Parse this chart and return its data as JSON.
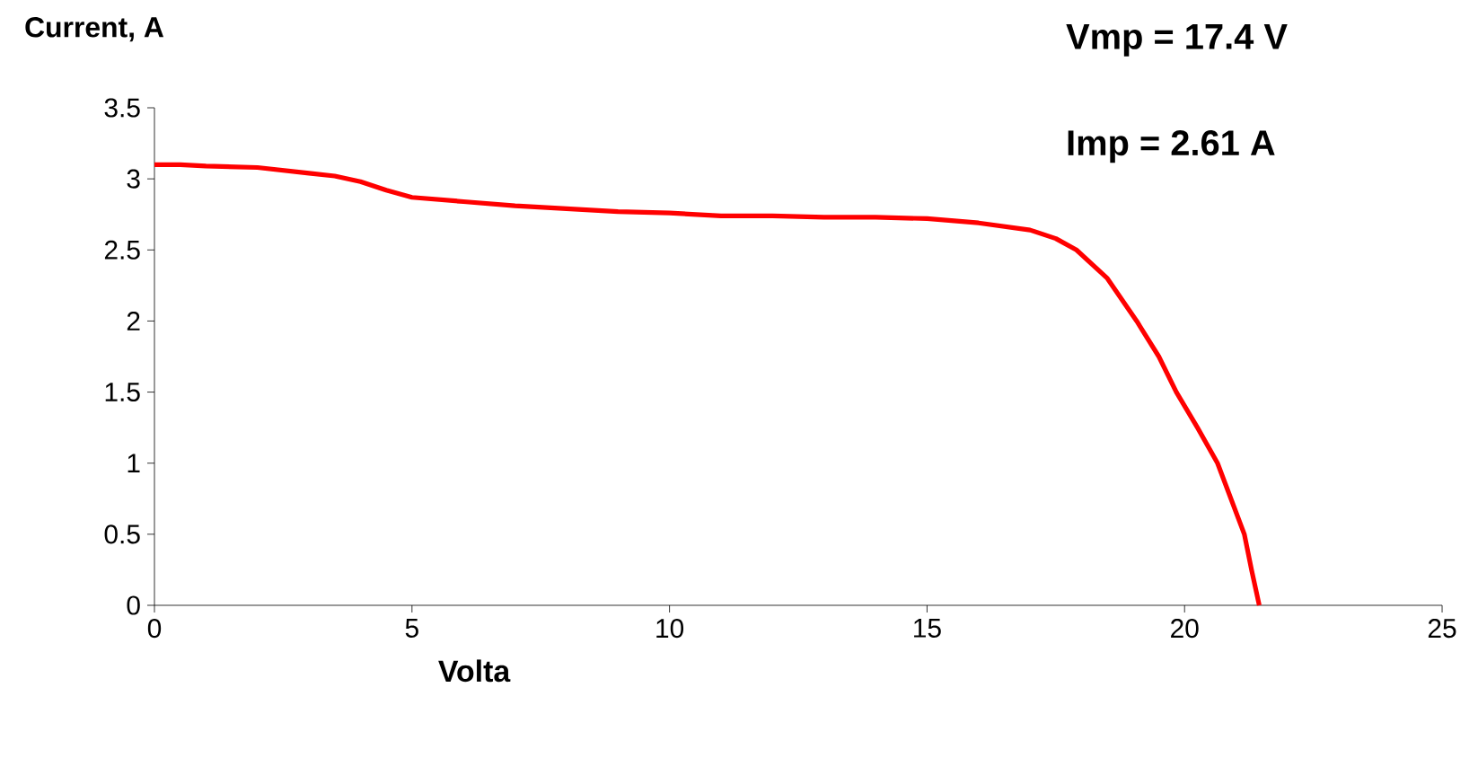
{
  "chart_data": {
    "type": "line",
    "xlabel": "Volta",
    "ylabel": "Current, A",
    "annotations": [
      "Vmp = 17.4 V",
      "Imp  = 2.61 A"
    ],
    "x": [
      0,
      0.5,
      1,
      2,
      3,
      3.5,
      4,
      4.5,
      5,
      6,
      7,
      8,
      9,
      10,
      11,
      12,
      13,
      14,
      15,
      16,
      17,
      17.5,
      17.9,
      18.5,
      19.07,
      19.5,
      19.84,
      20.25,
      20.64,
      20.9,
      21.16,
      21.3,
      21.45
    ],
    "series": [
      {
        "color": "#ff0000",
        "values": [
          3.1,
          3.1,
          3.09,
          3.08,
          3.04,
          3.02,
          2.98,
          2.92,
          2.87,
          2.84,
          2.81,
          2.79,
          2.77,
          2.76,
          2.74,
          2.74,
          2.73,
          2.73,
          2.72,
          2.69,
          2.64,
          2.58,
          2.5,
          2.3,
          2.0,
          1.75,
          1.5,
          1.25,
          1.0,
          0.75,
          0.5,
          0.25,
          0
        ]
      }
    ],
    "xlim": [
      0,
      25
    ],
    "ylim": [
      0,
      3.5
    ],
    "xticks": [
      0,
      5,
      10,
      15,
      20,
      25
    ],
    "yticks": [
      0,
      0.5,
      1,
      1.5,
      2,
      2.5,
      3,
      3.5
    ],
    "grid": false,
    "marker": "none",
    "line_style": "solid"
  }
}
